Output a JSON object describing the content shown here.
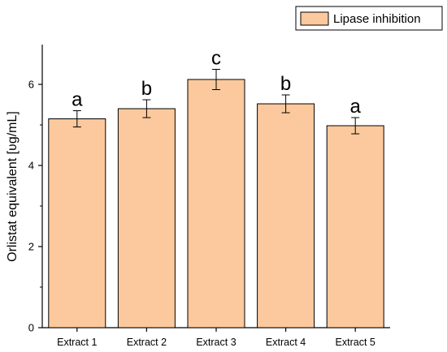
{
  "chart_data": {
    "type": "bar",
    "title": "",
    "xlabel": "",
    "ylabel": "Orlistat equivalent [ʋg/mL]",
    "ylim": [
      0,
      7
    ],
    "yticks": [
      0,
      2,
      4,
      6
    ],
    "categories": [
      "Extract 1",
      "Extract 2",
      "Extract 3",
      "Extract 4",
      "Extract 5"
    ],
    "series": [
      {
        "name": "Lipase inhibition",
        "values": [
          5.15,
          5.4,
          6.12,
          5.52,
          4.98
        ],
        "errors": [
          0.2,
          0.22,
          0.25,
          0.22,
          0.2
        ],
        "annotations": [
          "a",
          "b",
          "c",
          "b",
          "a"
        ]
      }
    ],
    "bar_color": "#fbc99d",
    "bar_edge_color": "#000000",
    "legend_position": "top-right",
    "grid": false
  }
}
